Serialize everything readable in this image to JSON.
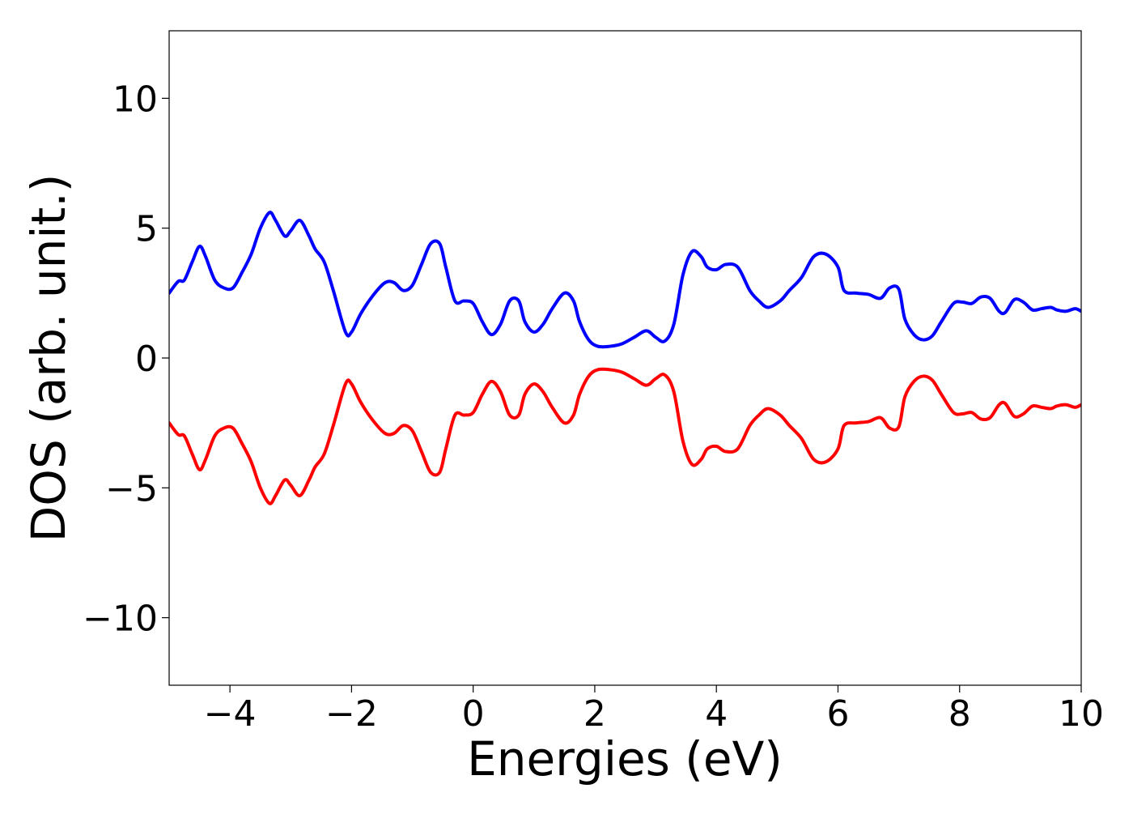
{
  "chart_data": {
    "type": "line",
    "title": "",
    "xlabel": "Energies (eV)",
    "ylabel": "DOS (arb. unit.)",
    "xlim": [
      -5,
      10
    ],
    "ylim": [
      -12.6,
      12.6
    ],
    "x_ticks": [
      -4,
      -2,
      0,
      2,
      4,
      6,
      8,
      10
    ],
    "x_tick_labels": [
      "−4",
      "−2",
      "0",
      "2",
      "4",
      "6",
      "8",
      "10"
    ],
    "y_ticks": [
      -10,
      -5,
      0,
      5,
      10
    ],
    "y_tick_labels": [
      "−10",
      "−5",
      "0",
      "5",
      "10"
    ],
    "grid": false,
    "legend": "none",
    "series": [
      {
        "color": "#0000ff",
        "x": [
          -5.0,
          -4.85,
          -4.75,
          -4.62,
          -4.5,
          -4.4,
          -4.25,
          -4.1,
          -3.95,
          -3.8,
          -3.65,
          -3.5,
          -3.35,
          -3.25,
          -3.1,
          -3.0,
          -2.85,
          -2.7,
          -2.6,
          -2.45,
          -2.3,
          -2.1,
          -2.0,
          -1.85,
          -1.65,
          -1.45,
          -1.3,
          -1.15,
          -1.0,
          -0.85,
          -0.7,
          -0.55,
          -0.45,
          -0.3,
          -0.15,
          0.0,
          0.15,
          0.3,
          0.45,
          0.6,
          0.75,
          0.85,
          1.0,
          1.15,
          1.3,
          1.5,
          1.65,
          1.75,
          1.9,
          2.05,
          2.25,
          2.45,
          2.65,
          2.85,
          3.0,
          3.15,
          3.3,
          3.45,
          3.6,
          3.75,
          3.85,
          4.0,
          4.15,
          4.35,
          4.55,
          4.7,
          4.85,
          5.05,
          5.2,
          5.4,
          5.6,
          5.8,
          6.0,
          6.1,
          6.3,
          6.5,
          6.7,
          6.85,
          7.0,
          7.1,
          7.25,
          7.4,
          7.55,
          7.7,
          7.9,
          8.05,
          8.2,
          8.35,
          8.5,
          8.65,
          8.75,
          8.9,
          9.05,
          9.2,
          9.35,
          9.5,
          9.6,
          9.75,
          9.9,
          10.0
        ],
        "y": [
          2.5,
          2.95,
          3.0,
          3.7,
          4.3,
          3.9,
          3.0,
          2.7,
          2.7,
          3.3,
          4.0,
          5.0,
          5.6,
          5.3,
          4.7,
          4.9,
          5.3,
          4.7,
          4.2,
          3.7,
          2.6,
          1.0,
          1.0,
          1.7,
          2.4,
          2.9,
          2.9,
          2.6,
          2.8,
          3.6,
          4.4,
          4.4,
          3.5,
          2.2,
          2.2,
          2.1,
          1.4,
          0.9,
          1.3,
          2.2,
          2.2,
          1.4,
          1.0,
          1.3,
          1.9,
          2.5,
          2.2,
          1.4,
          0.7,
          0.45,
          0.45,
          0.55,
          0.8,
          1.05,
          0.8,
          0.65,
          1.3,
          3.2,
          4.1,
          3.9,
          3.5,
          3.4,
          3.6,
          3.5,
          2.6,
          2.2,
          1.95,
          2.2,
          2.6,
          3.1,
          3.9,
          4.0,
          3.5,
          2.6,
          2.5,
          2.45,
          2.3,
          2.7,
          2.65,
          1.5,
          0.9,
          0.7,
          0.85,
          1.4,
          2.1,
          2.15,
          2.1,
          2.35,
          2.3,
          1.8,
          1.75,
          2.25,
          2.15,
          1.85,
          1.9,
          1.95,
          1.85,
          1.8,
          1.9,
          1.8
        ]
      },
      {
        "color": "#ff0000",
        "x": [
          -5.0,
          -4.85,
          -4.75,
          -4.62,
          -4.5,
          -4.4,
          -4.25,
          -4.1,
          -3.95,
          -3.8,
          -3.65,
          -3.5,
          -3.35,
          -3.25,
          -3.1,
          -3.0,
          -2.85,
          -2.7,
          -2.6,
          -2.45,
          -2.3,
          -2.1,
          -2.0,
          -1.85,
          -1.65,
          -1.45,
          -1.3,
          -1.15,
          -1.0,
          -0.85,
          -0.7,
          -0.55,
          -0.45,
          -0.3,
          -0.15,
          0.0,
          0.15,
          0.3,
          0.45,
          0.6,
          0.75,
          0.85,
          1.0,
          1.15,
          1.3,
          1.5,
          1.65,
          1.75,
          1.9,
          2.05,
          2.25,
          2.45,
          2.65,
          2.85,
          3.0,
          3.15,
          3.3,
          3.45,
          3.6,
          3.75,
          3.85,
          4.0,
          4.15,
          4.35,
          4.55,
          4.7,
          4.85,
          5.05,
          5.2,
          5.4,
          5.6,
          5.8,
          6.0,
          6.1,
          6.3,
          6.5,
          6.7,
          6.85,
          7.0,
          7.1,
          7.25,
          7.4,
          7.55,
          7.7,
          7.9,
          8.05,
          8.2,
          8.35,
          8.5,
          8.65,
          8.75,
          8.9,
          9.05,
          9.2,
          9.35,
          9.5,
          9.6,
          9.75,
          9.9,
          10.0
        ],
        "y": [
          -2.5,
          -2.95,
          -3.0,
          -3.7,
          -4.3,
          -3.9,
          -3.0,
          -2.7,
          -2.7,
          -3.3,
          -4.0,
          -5.0,
          -5.6,
          -5.3,
          -4.7,
          -4.9,
          -5.3,
          -4.7,
          -4.2,
          -3.7,
          -2.6,
          -1.0,
          -1.0,
          -1.7,
          -2.4,
          -2.9,
          -2.9,
          -2.6,
          -2.8,
          -3.6,
          -4.4,
          -4.4,
          -3.5,
          -2.2,
          -2.2,
          -2.1,
          -1.4,
          -0.9,
          -1.3,
          -2.2,
          -2.2,
          -1.4,
          -1.0,
          -1.3,
          -1.9,
          -2.5,
          -2.2,
          -1.4,
          -0.7,
          -0.45,
          -0.45,
          -0.55,
          -0.8,
          -1.05,
          -0.8,
          -0.65,
          -1.3,
          -3.2,
          -4.1,
          -3.9,
          -3.5,
          -3.4,
          -3.6,
          -3.5,
          -2.6,
          -2.2,
          -1.95,
          -2.2,
          -2.6,
          -3.1,
          -3.9,
          -4.0,
          -3.5,
          -2.6,
          -2.5,
          -2.45,
          -2.3,
          -2.7,
          -2.65,
          -1.5,
          -0.9,
          -0.7,
          -0.85,
          -1.4,
          -2.1,
          -2.15,
          -2.1,
          -2.35,
          -2.3,
          -1.8,
          -1.75,
          -2.25,
          -2.15,
          -1.85,
          -1.9,
          -1.95,
          -1.85,
          -1.8,
          -1.9,
          -1.8
        ]
      }
    ]
  }
}
